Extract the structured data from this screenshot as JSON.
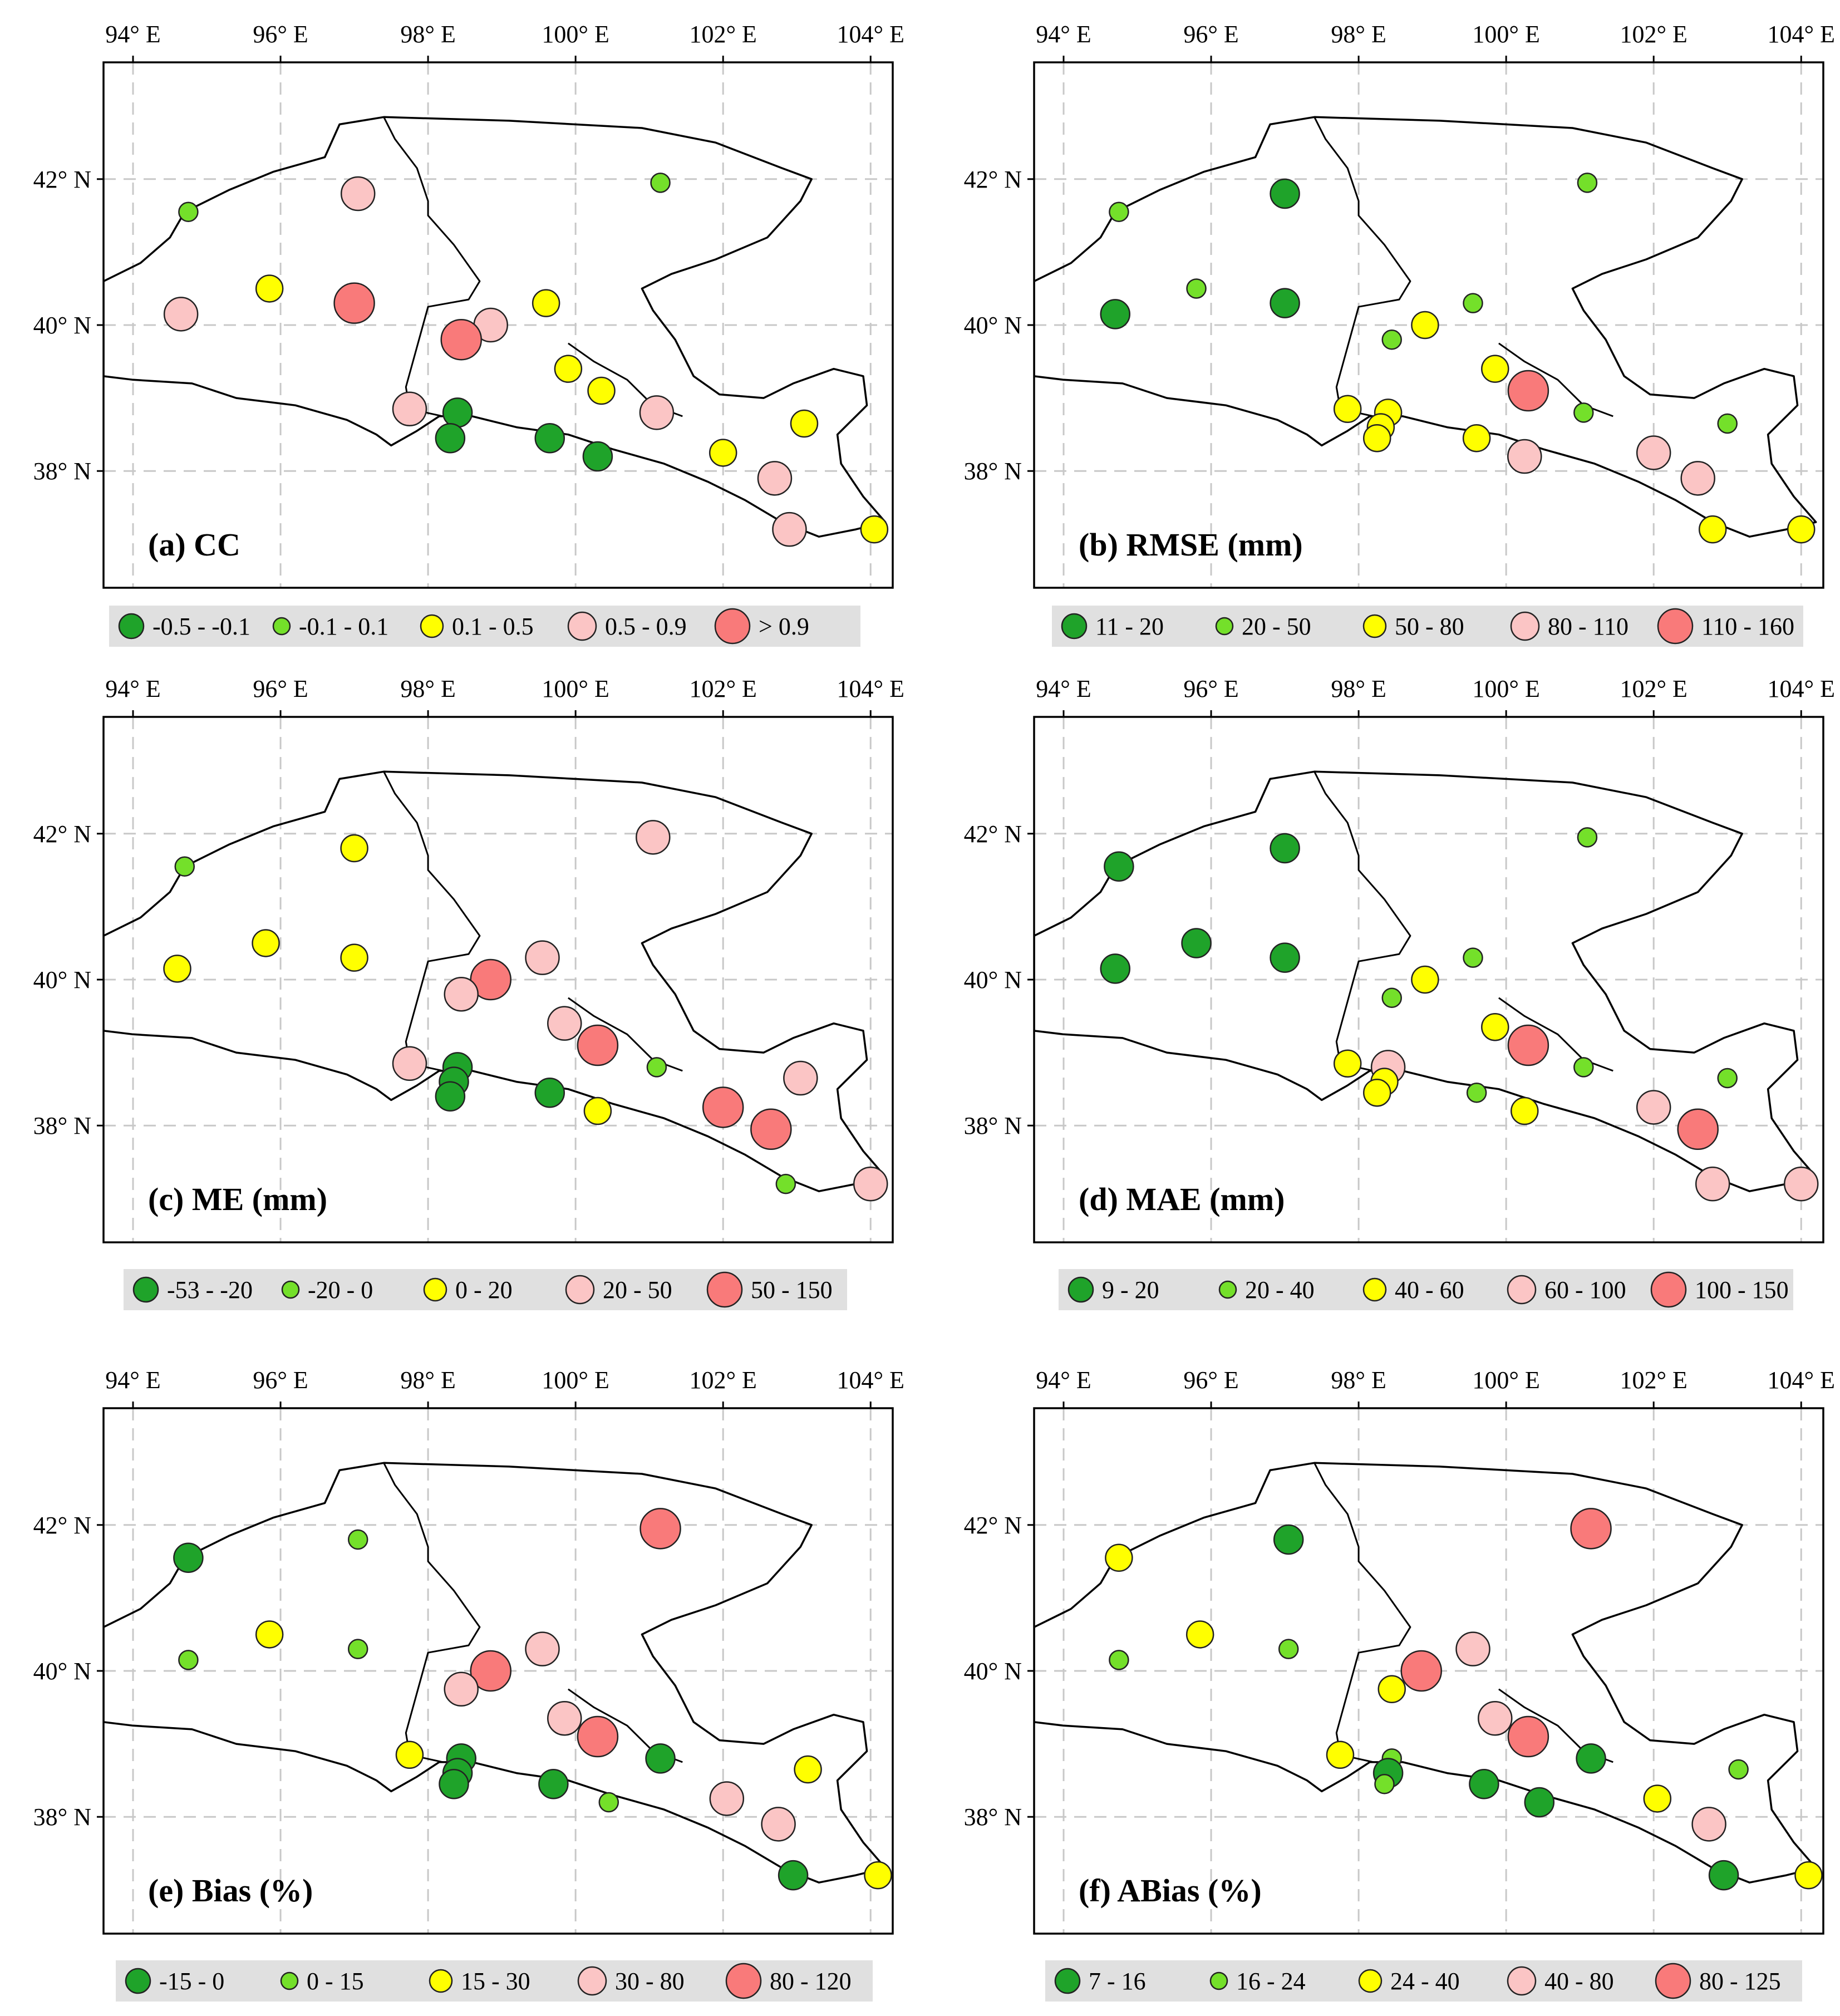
{
  "map": {
    "lon_range": [
      93.6,
      104.3
    ],
    "lat_range": [
      36.4,
      43.6
    ],
    "lon_ticks": [
      94,
      96,
      98,
      100,
      102,
      104
    ],
    "lat_ticks": [
      38,
      40,
      42
    ],
    "lon_labels": [
      "94° E",
      "96° E",
      "98° E",
      "100° E",
      "102° E",
      "104° E"
    ],
    "lat_labels": [
      "38° N",
      "40° N",
      "42° N"
    ]
  },
  "class_colors": [
    "#1fa32a",
    "#74e02a",
    "#ffff00",
    "#fbc5c5",
    "#f97a7a"
  ],
  "boundaries": {
    "outer": [
      [
        93.6,
        40.6
      ],
      [
        94.1,
        40.85
      ],
      [
        94.5,
        41.2
      ],
      [
        94.7,
        41.55
      ],
      [
        95.3,
        41.85
      ],
      [
        95.9,
        42.1
      ],
      [
        96.6,
        42.3
      ],
      [
        96.8,
        42.75
      ],
      [
        97.4,
        42.85
      ],
      [
        99.1,
        42.8
      ],
      [
        100.9,
        42.7
      ],
      [
        101.9,
        42.5
      ],
      [
        102.8,
        42.15
      ],
      [
        103.2,
        42.0
      ],
      [
        103.05,
        41.7
      ],
      [
        102.6,
        41.2
      ],
      [
        101.9,
        40.9
      ],
      [
        101.3,
        40.7
      ],
      [
        100.9,
        40.5
      ],
      [
        101.05,
        40.2
      ],
      [
        101.35,
        39.8
      ],
      [
        101.6,
        39.3
      ],
      [
        101.95,
        39.05
      ],
      [
        102.55,
        39.0
      ],
      [
        102.95,
        39.2
      ],
      [
        103.5,
        39.4
      ],
      [
        103.9,
        39.3
      ],
      [
        103.95,
        38.9
      ],
      [
        103.55,
        38.5
      ],
      [
        103.6,
        38.1
      ],
      [
        103.9,
        37.65
      ],
      [
        104.2,
        37.3
      ],
      [
        103.8,
        37.2
      ],
      [
        103.3,
        37.1
      ],
      [
        102.8,
        37.3
      ],
      [
        102.3,
        37.6
      ],
      [
        101.8,
        37.85
      ],
      [
        101.2,
        38.1
      ],
      [
        100.5,
        38.3
      ],
      [
        99.9,
        38.5
      ],
      [
        99.2,
        38.6
      ],
      [
        98.6,
        38.75
      ],
      [
        98.15,
        38.75
      ],
      [
        97.85,
        38.55
      ],
      [
        97.5,
        38.35
      ],
      [
        97.3,
        38.5
      ],
      [
        96.9,
        38.7
      ],
      [
        96.2,
        38.9
      ],
      [
        95.4,
        39.0
      ],
      [
        94.8,
        39.2
      ],
      [
        94.0,
        39.25
      ],
      [
        93.6,
        39.3
      ]
    ],
    "inner": [
      [
        97.4,
        42.85
      ],
      [
        97.55,
        42.55
      ],
      [
        97.85,
        42.15
      ],
      [
        98.0,
        41.7
      ],
      [
        98.0,
        41.5
      ],
      [
        98.35,
        41.1
      ],
      [
        98.7,
        40.6
      ],
      [
        98.55,
        40.35
      ],
      [
        98.0,
        40.25
      ],
      [
        97.85,
        39.7
      ],
      [
        97.7,
        39.15
      ],
      [
        97.75,
        38.85
      ],
      [
        98.2,
        38.75
      ]
    ],
    "inner2": [
      [
        99.9,
        39.75
      ],
      [
        100.25,
        39.5
      ],
      [
        100.7,
        39.25
      ],
      [
        101.05,
        38.9
      ],
      [
        101.45,
        38.75
      ]
    ]
  },
  "panels": [
    {
      "title": "(a)  CC",
      "legend": [
        "-0.5 - -0.1",
        "-0.1 - 0.1",
        "0.1 - 0.5",
        "0.5 - 0.9",
        "> 0.9"
      ],
      "stations": [
        {
          "lon": 94.75,
          "lat": 41.55,
          "c": 1
        },
        {
          "lon": 97.05,
          "lat": 41.8,
          "c": 3
        },
        {
          "lon": 101.15,
          "lat": 41.95,
          "c": 1
        },
        {
          "lon": 94.65,
          "lat": 40.15,
          "c": 3
        },
        {
          "lon": 95.85,
          "lat": 40.5,
          "c": 2
        },
        {
          "lon": 97.0,
          "lat": 40.3,
          "c": 4
        },
        {
          "lon": 98.85,
          "lat": 40.0,
          "c": 3
        },
        {
          "lon": 98.45,
          "lat": 39.8,
          "c": 4
        },
        {
          "lon": 99.6,
          "lat": 40.3,
          "c": 2
        },
        {
          "lon": 99.9,
          "lat": 39.4,
          "c": 2
        },
        {
          "lon": 100.35,
          "lat": 39.1,
          "c": 2
        },
        {
          "lon": 101.1,
          "lat": 38.8,
          "c": 3
        },
        {
          "lon": 97.75,
          "lat": 38.85,
          "c": 3
        },
        {
          "lon": 98.4,
          "lat": 38.8,
          "c": 0
        },
        {
          "lon": 98.3,
          "lat": 38.45,
          "c": 0
        },
        {
          "lon": 99.65,
          "lat": 38.45,
          "c": 0
        },
        {
          "lon": 100.3,
          "lat": 38.2,
          "c": 0
        },
        {
          "lon": 102.0,
          "lat": 38.25,
          "c": 2
        },
        {
          "lon": 102.7,
          "lat": 37.9,
          "c": 3
        },
        {
          "lon": 103.1,
          "lat": 38.65,
          "c": 2
        },
        {
          "lon": 102.9,
          "lat": 37.2,
          "c": 3
        },
        {
          "lon": 104.05,
          "lat": 37.2,
          "c": 2
        }
      ]
    },
    {
      "title": "(b)  RMSE (mm)",
      "legend": [
        "11 - 20",
        "20 - 50",
        "50 - 80",
        "80 - 110",
        "110 - 160"
      ],
      "stations": [
        {
          "lon": 94.75,
          "lat": 41.55,
          "c": 1
        },
        {
          "lon": 97.0,
          "lat": 41.8,
          "c": 0
        },
        {
          "lon": 101.1,
          "lat": 41.95,
          "c": 1
        },
        {
          "lon": 94.7,
          "lat": 40.15,
          "c": 0
        },
        {
          "lon": 95.8,
          "lat": 40.5,
          "c": 1
        },
        {
          "lon": 97.0,
          "lat": 40.3,
          "c": 0
        },
        {
          "lon": 98.9,
          "lat": 40.0,
          "c": 2
        },
        {
          "lon": 98.45,
          "lat": 39.8,
          "c": 1
        },
        {
          "lon": 99.55,
          "lat": 40.3,
          "c": 1
        },
        {
          "lon": 99.85,
          "lat": 39.4,
          "c": 2
        },
        {
          "lon": 100.3,
          "lat": 39.1,
          "c": 4
        },
        {
          "lon": 101.05,
          "lat": 38.8,
          "c": 1
        },
        {
          "lon": 97.85,
          "lat": 38.85,
          "c": 2
        },
        {
          "lon": 98.4,
          "lat": 38.8,
          "c": 2
        },
        {
          "lon": 98.3,
          "lat": 38.6,
          "c": 2
        },
        {
          "lon": 98.25,
          "lat": 38.45,
          "c": 2
        },
        {
          "lon": 99.6,
          "lat": 38.45,
          "c": 2
        },
        {
          "lon": 100.25,
          "lat": 38.2,
          "c": 3
        },
        {
          "lon": 102.0,
          "lat": 38.25,
          "c": 3
        },
        {
          "lon": 102.6,
          "lat": 37.9,
          "c": 3
        },
        {
          "lon": 103.0,
          "lat": 38.65,
          "c": 1
        },
        {
          "lon": 102.8,
          "lat": 37.2,
          "c": 2
        },
        {
          "lon": 104.0,
          "lat": 37.2,
          "c": 2
        }
      ]
    },
    {
      "title": "(c)  ME (mm)",
      "legend": [
        "-53 - -20",
        "-20 - 0",
        "0 - 20",
        "20 - 50",
        "50 - 150"
      ],
      "stations": [
        {
          "lon": 94.7,
          "lat": 41.55,
          "c": 1
        },
        {
          "lon": 97.0,
          "lat": 41.8,
          "c": 2
        },
        {
          "lon": 101.05,
          "lat": 41.95,
          "c": 3
        },
        {
          "lon": 94.6,
          "lat": 40.15,
          "c": 2
        },
        {
          "lon": 95.8,
          "lat": 40.5,
          "c": 2
        },
        {
          "lon": 97.0,
          "lat": 40.3,
          "c": 2
        },
        {
          "lon": 98.85,
          "lat": 40.0,
          "c": 4
        },
        {
          "lon": 98.45,
          "lat": 39.8,
          "c": 3
        },
        {
          "lon": 99.55,
          "lat": 40.3,
          "c": 3
        },
        {
          "lon": 99.85,
          "lat": 39.4,
          "c": 3
        },
        {
          "lon": 100.3,
          "lat": 39.1,
          "c": 4
        },
        {
          "lon": 101.1,
          "lat": 38.8,
          "c": 1
        },
        {
          "lon": 97.75,
          "lat": 38.85,
          "c": 3
        },
        {
          "lon": 98.4,
          "lat": 38.8,
          "c": 0
        },
        {
          "lon": 98.35,
          "lat": 38.6,
          "c": 0
        },
        {
          "lon": 98.3,
          "lat": 38.4,
          "c": 0
        },
        {
          "lon": 99.65,
          "lat": 38.45,
          "c": 0
        },
        {
          "lon": 100.3,
          "lat": 38.2,
          "c": 2
        },
        {
          "lon": 102.0,
          "lat": 38.25,
          "c": 4
        },
        {
          "lon": 102.65,
          "lat": 37.95,
          "c": 4
        },
        {
          "lon": 103.05,
          "lat": 38.65,
          "c": 3
        },
        {
          "lon": 102.85,
          "lat": 37.2,
          "c": 1
        },
        {
          "lon": 104.0,
          "lat": 37.2,
          "c": 3
        }
      ]
    },
    {
      "title": "(d)  MAE (mm)",
      "legend": [
        "9 - 20",
        "20 - 40",
        "40 - 60",
        "60 - 100",
        "100 - 150"
      ],
      "stations": [
        {
          "lon": 94.75,
          "lat": 41.55,
          "c": 0
        },
        {
          "lon": 97.0,
          "lat": 41.8,
          "c": 0
        },
        {
          "lon": 101.1,
          "lat": 41.95,
          "c": 1
        },
        {
          "lon": 94.7,
          "lat": 40.15,
          "c": 0
        },
        {
          "lon": 95.8,
          "lat": 40.5,
          "c": 0
        },
        {
          "lon": 97.0,
          "lat": 40.3,
          "c": 0
        },
        {
          "lon": 98.9,
          "lat": 40.0,
          "c": 2
        },
        {
          "lon": 98.45,
          "lat": 39.75,
          "c": 1
        },
        {
          "lon": 99.55,
          "lat": 40.3,
          "c": 1
        },
        {
          "lon": 99.85,
          "lat": 39.35,
          "c": 2
        },
        {
          "lon": 100.3,
          "lat": 39.1,
          "c": 4
        },
        {
          "lon": 101.05,
          "lat": 38.8,
          "c": 1
        },
        {
          "lon": 97.85,
          "lat": 38.85,
          "c": 2
        },
        {
          "lon": 98.4,
          "lat": 38.8,
          "c": 3
        },
        {
          "lon": 98.35,
          "lat": 38.6,
          "c": 2
        },
        {
          "lon": 98.25,
          "lat": 38.45,
          "c": 2
        },
        {
          "lon": 99.6,
          "lat": 38.45,
          "c": 1
        },
        {
          "lon": 100.25,
          "lat": 38.2,
          "c": 2
        },
        {
          "lon": 102.0,
          "lat": 38.25,
          "c": 3
        },
        {
          "lon": 102.6,
          "lat": 37.95,
          "c": 4
        },
        {
          "lon": 103.0,
          "lat": 38.65,
          "c": 1
        },
        {
          "lon": 102.8,
          "lat": 37.2,
          "c": 3
        },
        {
          "lon": 104.0,
          "lat": 37.2,
          "c": 3
        }
      ]
    },
    {
      "title": "(e)  Bias (%)",
      "legend": [
        "-15 - 0",
        "0 - 15",
        "15 - 30",
        "30 - 80",
        "80 - 120"
      ],
      "stations": [
        {
          "lon": 94.75,
          "lat": 41.55,
          "c": 0
        },
        {
          "lon": 97.05,
          "lat": 41.8,
          "c": 1
        },
        {
          "lon": 101.15,
          "lat": 41.95,
          "c": 4
        },
        {
          "lon": 94.75,
          "lat": 40.15,
          "c": 1
        },
        {
          "lon": 95.85,
          "lat": 40.5,
          "c": 2
        },
        {
          "lon": 97.05,
          "lat": 40.3,
          "c": 1
        },
        {
          "lon": 98.85,
          "lat": 40.0,
          "c": 4
        },
        {
          "lon": 98.45,
          "lat": 39.75,
          "c": 3
        },
        {
          "lon": 99.55,
          "lat": 40.3,
          "c": 3
        },
        {
          "lon": 99.85,
          "lat": 39.35,
          "c": 3
        },
        {
          "lon": 100.3,
          "lat": 39.1,
          "c": 4
        },
        {
          "lon": 101.15,
          "lat": 38.8,
          "c": 0
        },
        {
          "lon": 97.75,
          "lat": 38.85,
          "c": 2
        },
        {
          "lon": 98.45,
          "lat": 38.8,
          "c": 0
        },
        {
          "lon": 98.4,
          "lat": 38.6,
          "c": 0
        },
        {
          "lon": 98.35,
          "lat": 38.45,
          "c": 0
        },
        {
          "lon": 99.7,
          "lat": 38.45,
          "c": 0
        },
        {
          "lon": 100.45,
          "lat": 38.2,
          "c": 1
        },
        {
          "lon": 102.05,
          "lat": 38.25,
          "c": 3
        },
        {
          "lon": 102.75,
          "lat": 37.9,
          "c": 3
        },
        {
          "lon": 103.15,
          "lat": 38.65,
          "c": 2
        },
        {
          "lon": 102.95,
          "lat": 37.2,
          "c": 0
        },
        {
          "lon": 104.1,
          "lat": 37.2,
          "c": 2
        }
      ]
    },
    {
      "title": "(f)  ABias (%)",
      "legend": [
        "7 - 16",
        "16 - 24",
        "24 - 40",
        "40 - 80",
        "80 - 125"
      ],
      "stations": [
        {
          "lon": 94.75,
          "lat": 41.55,
          "c": 2
        },
        {
          "lon": 97.05,
          "lat": 41.8,
          "c": 0
        },
        {
          "lon": 101.15,
          "lat": 41.95,
          "c": 4
        },
        {
          "lon": 94.75,
          "lat": 40.15,
          "c": 1
        },
        {
          "lon": 95.85,
          "lat": 40.5,
          "c": 2
        },
        {
          "lon": 97.05,
          "lat": 40.3,
          "c": 1
        },
        {
          "lon": 98.85,
          "lat": 40.0,
          "c": 4
        },
        {
          "lon": 98.45,
          "lat": 39.75,
          "c": 2
        },
        {
          "lon": 99.55,
          "lat": 40.3,
          "c": 3
        },
        {
          "lon": 99.85,
          "lat": 39.35,
          "c": 3
        },
        {
          "lon": 100.3,
          "lat": 39.1,
          "c": 4
        },
        {
          "lon": 101.15,
          "lat": 38.8,
          "c": 0
        },
        {
          "lon": 97.75,
          "lat": 38.85,
          "c": 2
        },
        {
          "lon": 98.45,
          "lat": 38.8,
          "c": 1
        },
        {
          "lon": 98.4,
          "lat": 38.6,
          "c": 0
        },
        {
          "lon": 98.35,
          "lat": 38.45,
          "c": 1
        },
        {
          "lon": 99.7,
          "lat": 38.45,
          "c": 0
        },
        {
          "lon": 100.45,
          "lat": 38.2,
          "c": 0
        },
        {
          "lon": 102.05,
          "lat": 38.25,
          "c": 2
        },
        {
          "lon": 102.75,
          "lat": 37.9,
          "c": 3
        },
        {
          "lon": 103.15,
          "lat": 38.65,
          "c": 1
        },
        {
          "lon": 102.95,
          "lat": 37.2,
          "c": 0
        },
        {
          "lon": 104.1,
          "lat": 37.2,
          "c": 2
        }
      ]
    }
  ]
}
